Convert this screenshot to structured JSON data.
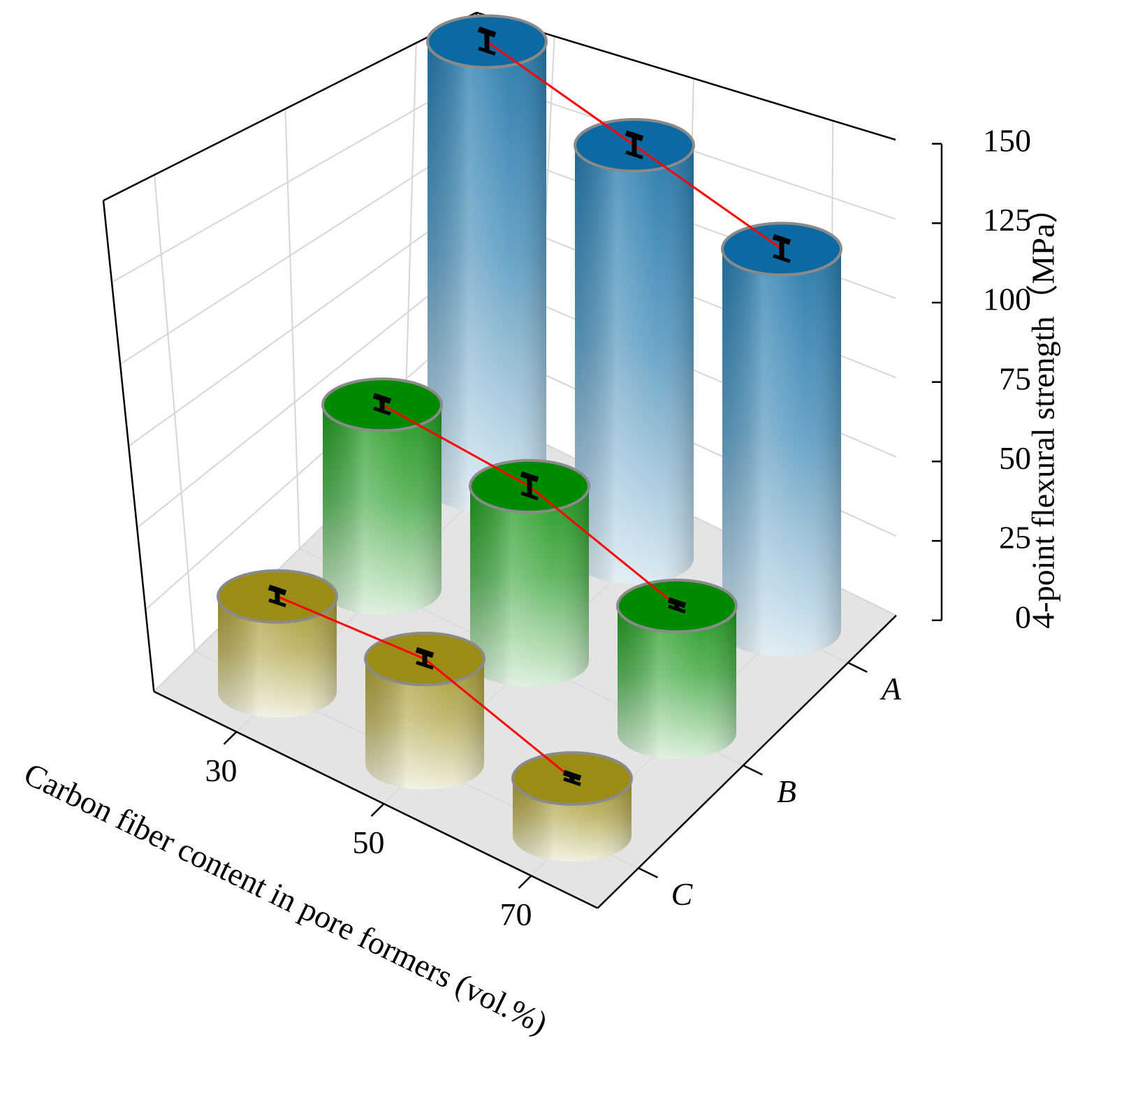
{
  "chart_data": {
    "type": "bar3d",
    "x_label": "Carbon fiber content in pore formers (vol.%)",
    "z_label": "4-point flexural strength（MPa）",
    "categories": [
      "30",
      "50",
      "70"
    ],
    "series": [
      {
        "name": "A",
        "color": "#0b6aa2",
        "values": [
          140,
          130,
          120
        ],
        "errors": [
          3,
          3,
          3
        ]
      },
      {
        "name": "B",
        "color": "#008a00",
        "values": [
          58,
          55,
          40
        ],
        "errors": [
          2,
          3,
          1
        ]
      },
      {
        "name": "C",
        "color": "#9a8c14",
        "values": [
          30,
          33,
          18
        ],
        "errors": [
          2,
          2,
          1
        ]
      }
    ],
    "zlim": [
      0,
      150
    ],
    "zticks": [
      0,
      25,
      50,
      75,
      100,
      125,
      150
    ],
    "grid": true,
    "connector_color": "#ff0000"
  }
}
